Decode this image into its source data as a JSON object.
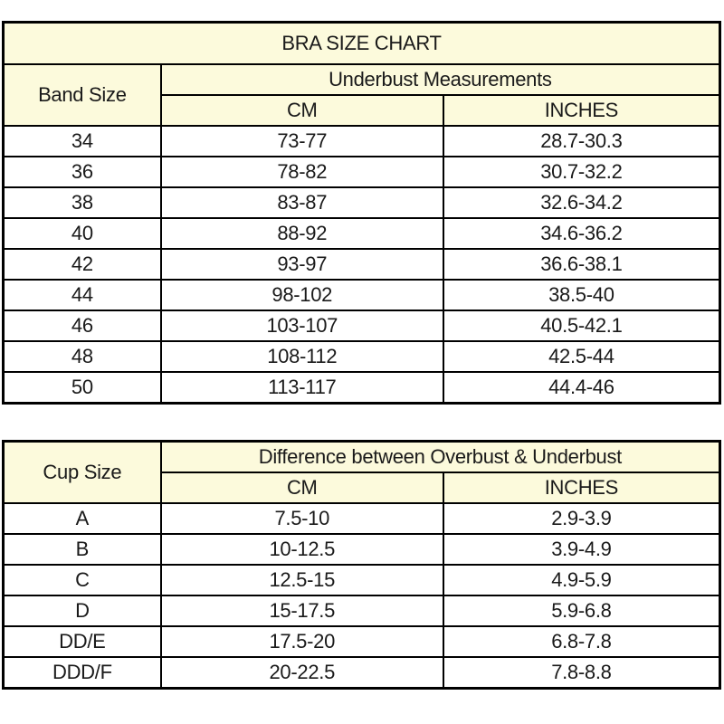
{
  "colors": {
    "header_background": "#fcfadc",
    "border": "#000000",
    "text": "#1a1a1a",
    "data_row_background": "#ffffff"
  },
  "chart_data": [
    {
      "type": "table",
      "title": "BRA SIZE CHART",
      "corner_header": "Band Size",
      "group_header": "Underbust Measurements",
      "columns": [
        "CM",
        "INCHES"
      ],
      "rows": [
        [
          "34",
          "73-77",
          "28.7-30.3"
        ],
        [
          "36",
          "78-82",
          "30.7-32.2"
        ],
        [
          "38",
          "83-87",
          "32.6-34.2"
        ],
        [
          "40",
          "88-92",
          "34.6-36.2"
        ],
        [
          "42",
          "93-97",
          "36.6-38.1"
        ],
        [
          "44",
          "98-102",
          "38.5-40"
        ],
        [
          "46",
          "103-107",
          "40.5-42.1"
        ],
        [
          "48",
          "108-112",
          "42.5-44"
        ],
        [
          "50",
          "113-117",
          "44.4-46"
        ]
      ]
    },
    {
      "type": "table",
      "corner_header": "Cup Size",
      "group_header": "Difference between Overbust & Underbust",
      "columns": [
        "CM",
        "INCHES"
      ],
      "rows": [
        [
          "A",
          "7.5-10",
          "2.9-3.9"
        ],
        [
          "B",
          "10-12.5",
          "3.9-4.9"
        ],
        [
          "C",
          "12.5-15",
          "4.9-5.9"
        ],
        [
          "D",
          "15-17.5",
          "5.9-6.8"
        ],
        [
          "DD/E",
          "17.5-20",
          "6.8-7.8"
        ],
        [
          "DDD/F",
          "20-22.5",
          "7.8-8.8"
        ]
      ]
    }
  ]
}
